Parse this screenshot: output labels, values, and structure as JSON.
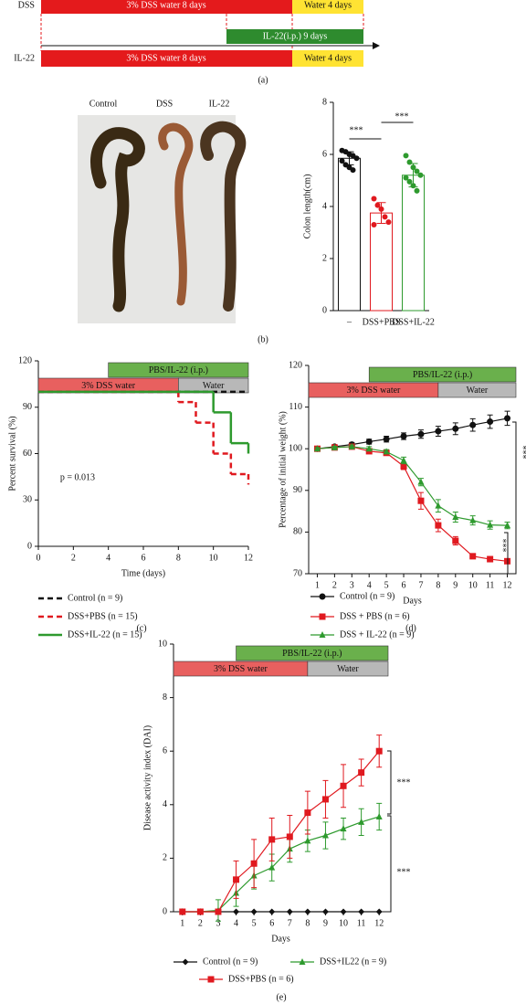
{
  "timeline": {
    "rows": [
      {
        "label": "DSS",
        "segments": [
          "3% DSS water 8 days",
          "Water 4 days"
        ]
      },
      {
        "label": "IL-22",
        "segments": [
          "3% DSS water 8 days",
          "Water 4 days"
        ]
      }
    ],
    "treatment": "IL-22(i.p.) 9 days"
  },
  "photo": {
    "labels": [
      "Control",
      "DSS",
      "IL-22"
    ]
  },
  "panel_labels": [
    "(a)",
    "(b)",
    "(c)",
    "(d)",
    "(e)"
  ],
  "chart_data": [
    {
      "type": "bar",
      "ylabel": "Colon length(cm)",
      "categories": [
        "–",
        "DSS+PBS",
        "DSS+IL-22"
      ],
      "values": [
        5.85,
        3.75,
        5.2
      ],
      "errors": [
        0.25,
        0.4,
        0.45
      ],
      "colors": [
        "#111111",
        "#e0191f",
        "#2e9a2e"
      ],
      "points": [
        [
          6.15,
          6.1,
          6.0,
          5.95,
          5.85,
          5.75,
          5.6,
          5.5,
          5.4
        ],
        [
          4.3,
          4.05,
          3.9,
          3.6,
          3.4,
          3.3
        ],
        [
          5.95,
          5.7,
          5.5,
          5.35,
          5.2,
          5.1,
          4.95,
          4.8,
          4.6
        ]
      ],
      "ylim": [
        0,
        8
      ],
      "yticks": [
        0,
        2,
        4,
        6,
        8
      ],
      "annotations": [
        "***",
        "***"
      ]
    },
    {
      "type": "step",
      "xlabel": "Time (days)",
      "ylabel": "Percent survival (%)",
      "xlim": [
        0,
        12
      ],
      "ylim": [
        0,
        120
      ],
      "xticks": [
        0,
        2,
        4,
        6,
        8,
        10,
        12
      ],
      "yticks": [
        0,
        30,
        60,
        90,
        120
      ],
      "phases": [
        {
          "label": "PBS/IL-22 (i.p.)",
          "start": 4,
          "end": 12,
          "row": 0,
          "color": "#6ab04c"
        },
        {
          "label": "3% DSS water",
          "start": 0,
          "end": 8,
          "row": 1,
          "color": "#e8605f"
        },
        {
          "label": "Water",
          "start": 8,
          "end": 12,
          "row": 1,
          "color": "#b8b8b8"
        }
      ],
      "series": [
        {
          "name": "Control (n = 9)",
          "color": "#111111",
          "linestyle": "dashed",
          "x": [
            0,
            12
          ],
          "values": [
            100,
            100
          ]
        },
        {
          "name": "DSS+PBS (n = 15)",
          "color": "#e0191f",
          "linestyle": "dashed",
          "x": [
            0,
            8,
            9,
            10,
            11,
            12
          ],
          "values": [
            100,
            93.3,
            80,
            60,
            46.7,
            40
          ]
        },
        {
          "name": "DSS+IL-22 (n = 15)",
          "color": "#2e9a2e",
          "linestyle": "solid",
          "x": [
            0,
            10,
            11,
            12
          ],
          "values": [
            100,
            86.7,
            66.7,
            60
          ]
        }
      ],
      "annotations": [
        "p = 0.013"
      ]
    },
    {
      "type": "line",
      "xlabel": "Days",
      "ylabel": "Percentage of initial weight (%)",
      "xlim": [
        0.5,
        12.5
      ],
      "ylim": [
        70,
        120
      ],
      "xticks": [
        1,
        2,
        3,
        4,
        5,
        6,
        7,
        8,
        9,
        10,
        11,
        12
      ],
      "yticks": [
        70,
        80,
        90,
        100,
        110,
        120
      ],
      "x": [
        1,
        2,
        3,
        4,
        5,
        6,
        7,
        8,
        9,
        10,
        11,
        12
      ],
      "phases": [
        {
          "label": "PBS/IL-22 (i.p.)",
          "start": 4,
          "end": 12.5,
          "row": 0,
          "color": "#6ab04c"
        },
        {
          "label": "3% DSS water",
          "start": 0.5,
          "end": 8,
          "row": 1,
          "color": "#e8605f"
        },
        {
          "label": "Water",
          "start": 8,
          "end": 12.5,
          "row": 1,
          "color": "#b8b8b8"
        }
      ],
      "series": [
        {
          "name": "Control (n = 9)",
          "color": "#111111",
          "marker": "circle",
          "values": [
            100,
            100.5,
            101,
            101.7,
            102.3,
            103,
            103.5,
            104.2,
            104.8,
            105.7,
            106.5,
            107.3
          ],
          "errors": [
            0.3,
            0.4,
            0.5,
            0.6,
            0.7,
            0.8,
            1,
            1.2,
            1.4,
            1.5,
            1.6,
            1.7
          ]
        },
        {
          "name": "DSS + PBS (n = 6)",
          "color": "#e0191f",
          "marker": "square",
          "values": [
            100,
            100.3,
            100.5,
            99.4,
            99,
            95.8,
            87.5,
            81.6,
            77.9,
            74.2,
            73.5,
            73
          ],
          "errors": [
            0.3,
            0.3,
            0.4,
            0.5,
            0.5,
            0.8,
            2,
            1.5,
            1,
            0.6,
            0.4,
            0.3
          ]
        },
        {
          "name": "DSS + IL-22 (n = 9)",
          "color": "#2e9a2e",
          "marker": "triangle",
          "values": [
            100,
            100.3,
            100.5,
            100,
            99.3,
            97.2,
            92,
            86.3,
            83.6,
            82.8,
            81.7,
            81.6
          ],
          "errors": [
            0.3,
            0.3,
            0.4,
            0.5,
            0.5,
            0.8,
            0.9,
            1.5,
            1.2,
            1.1,
            1,
            0.8
          ]
        }
      ],
      "annotations": [
        "***",
        "***"
      ]
    },
    {
      "type": "line",
      "xlabel": "Days",
      "ylabel": "Disease activity index (DAI)",
      "xlim": [
        0.5,
        12.5
      ],
      "ylim": [
        0,
        10
      ],
      "xticks": [
        1,
        2,
        3,
        4,
        5,
        6,
        7,
        8,
        9,
        10,
        11,
        12
      ],
      "yticks": [
        0,
        2,
        4,
        6,
        8,
        10
      ],
      "x": [
        1,
        2,
        3,
        4,
        5,
        6,
        7,
        8,
        9,
        10,
        11,
        12
      ],
      "phases": [
        {
          "label": "PBS/IL-22 (i.p.)",
          "start": 4,
          "end": 12.5,
          "row": 0,
          "color": "#6ab04c"
        },
        {
          "label": "3% DSS water",
          "start": 0.5,
          "end": 8,
          "row": 1,
          "color": "#e8605f"
        },
        {
          "label": "Water",
          "start": 8,
          "end": 12.5,
          "row": 1,
          "color": "#b8b8b8"
        }
      ],
      "series": [
        {
          "name": "Control (n = 9)",
          "color": "#111111",
          "marker": "diamond",
          "values": [
            0,
            0,
            0,
            0,
            0,
            0,
            0,
            0,
            0,
            0,
            0,
            0
          ],
          "errors": [
            0,
            0,
            0,
            0,
            0,
            0,
            0,
            0,
            0,
            0,
            0,
            0
          ]
        },
        {
          "name": "DSS+IL22 (n = 9)",
          "color": "#2e9a2e",
          "marker": "triangle",
          "values": [
            0,
            0,
            0.05,
            0.7,
            1.35,
            1.65,
            2.35,
            2.65,
            2.85,
            3.1,
            3.35,
            3.55
          ],
          "errors": [
            0,
            0,
            0.4,
            0.5,
            0.5,
            0.5,
            0.5,
            0.4,
            0.5,
            0.4,
            0.5,
            0.5
          ]
        },
        {
          "name": "DSS+PBS (n = 6)",
          "color": "#e0191f",
          "marker": "square",
          "values": [
            0,
            0,
            0,
            1.2,
            1.8,
            2.7,
            2.8,
            3.7,
            4.2,
            4.7,
            5.2,
            6
          ],
          "errors": [
            0,
            0,
            0,
            0.7,
            0.9,
            0.8,
            0.8,
            0.8,
            0.7,
            0.8,
            0.5,
            0.6
          ]
        }
      ],
      "annotations": [
        "***",
        "***"
      ]
    }
  ]
}
